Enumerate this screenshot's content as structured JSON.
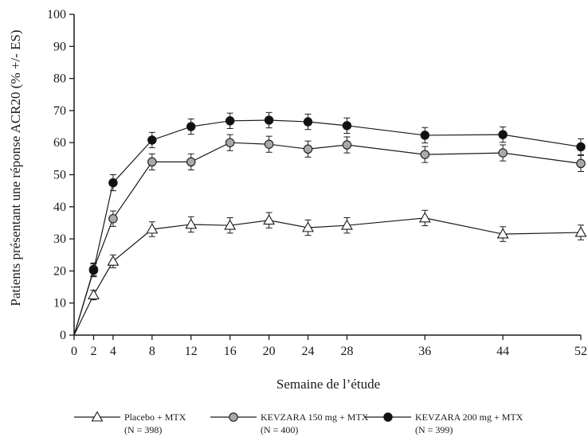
{
  "chart_data": {
    "type": "line",
    "xlabel": "Semaine de l’étude",
    "ylabel": "Patients présentant une réponse ACR20 (% +/- ES)",
    "x": [
      0,
      2,
      4,
      8,
      12,
      16,
      20,
      24,
      28,
      36,
      44,
      52
    ],
    "x_ticks": [
      0,
      2,
      4,
      8,
      12,
      16,
      20,
      24,
      28,
      36,
      44,
      52
    ],
    "y_ticks": [
      0,
      10,
      20,
      30,
      40,
      50,
      60,
      70,
      80,
      90,
      100
    ],
    "xlim": [
      0,
      52
    ],
    "ylim": [
      0,
      100
    ],
    "grid": false,
    "legend_position": "bottom",
    "series": [
      {
        "name": "Placebo + MTX",
        "n_label": "(N = 398)",
        "marker": "triangle-open",
        "color": "#1a1a1a",
        "fill": "#ffffff",
        "values": [
          0,
          12.5,
          23,
          33,
          34.5,
          34.2,
          35.8,
          33.5,
          34.2,
          36.5,
          31.5,
          32
        ],
        "error": [
          0,
          1.5,
          2.0,
          2.3,
          2.4,
          2.4,
          2.4,
          2.4,
          2.4,
          2.4,
          2.3,
          2.3
        ]
      },
      {
        "name": "KEVZARA 150 mg + MTX",
        "n_label": "(N = 400)",
        "marker": "circle",
        "color": "#1a1a1a",
        "fill": "#a9a9a9",
        "values": [
          0,
          20.5,
          36.3,
          54,
          54,
          60,
          59.5,
          58,
          59.3,
          56.3,
          56.8,
          53.5
        ],
        "error": [
          0,
          2.0,
          2.4,
          2.5,
          2.5,
          2.5,
          2.5,
          2.5,
          2.5,
          2.5,
          2.5,
          2.5
        ]
      },
      {
        "name": "KEVZARA 200 mg + MTX",
        "n_label": "(N = 399)",
        "marker": "circle",
        "color": "#1a1a1a",
        "fill": "#111111",
        "values": [
          0,
          20.2,
          47.5,
          60.8,
          65,
          66.8,
          67,
          66.5,
          65.3,
          62.3,
          62.5,
          58.7
        ],
        "error": [
          0,
          2.0,
          2.5,
          2.4,
          2.4,
          2.4,
          2.4,
          2.4,
          2.4,
          2.4,
          2.4,
          2.5
        ]
      }
    ]
  }
}
